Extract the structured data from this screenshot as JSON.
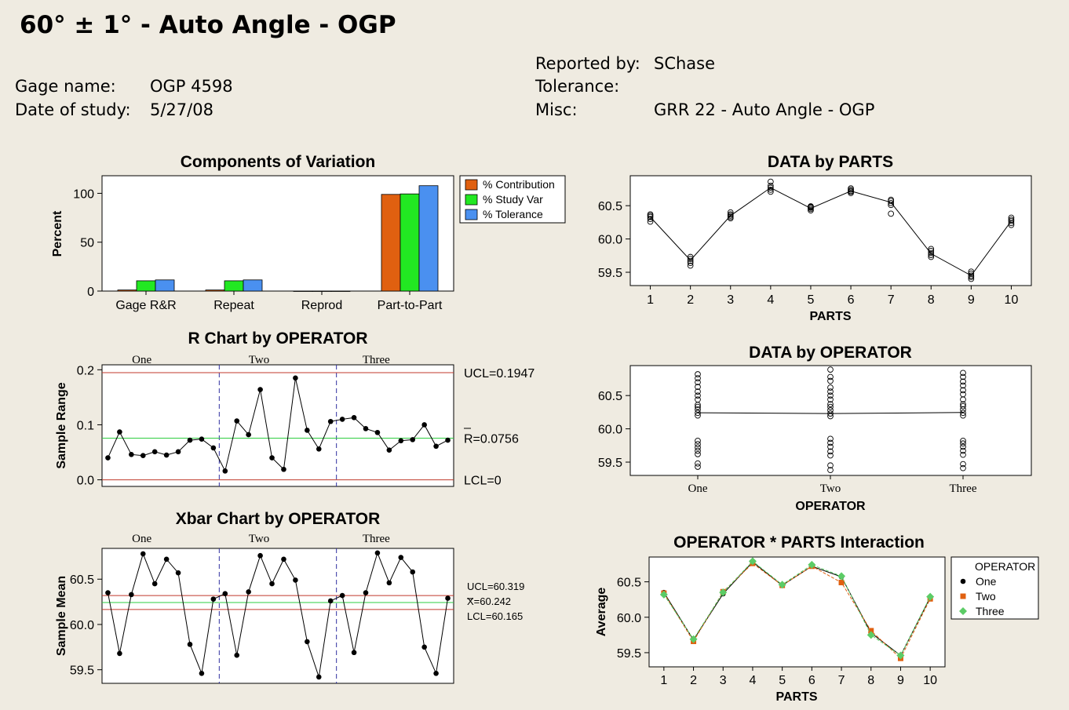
{
  "header": {
    "title": "60° ± 1° - Auto Angle - OGP",
    "gage_name_label": "Gage name:",
    "gage_name": "OGP 4598",
    "date_label": "Date of study:",
    "date": "5/27/08",
    "reported_by_label": "Reported by:",
    "reported_by": "SChase",
    "tolerance_label": "Tolerance:",
    "tolerance": "",
    "misc_label": "Misc:",
    "misc": "GRR 22 - Auto Angle - OGP"
  },
  "chart_data": [
    {
      "id": "components",
      "type": "bar",
      "title": "Components of Variation",
      "ylabel": "Percent",
      "categories": [
        "Gage R&R",
        "Repeat",
        "Reprod",
        "Part-to-Part"
      ],
      "ylim": [
        0,
        118
      ],
      "yticks": [
        0,
        50,
        100
      ],
      "series": [
        {
          "name": "% Contribution",
          "color": "#e06010",
          "values": [
            1.1,
            1.1,
            0,
            98.9
          ]
        },
        {
          "name": "% Study Var",
          "color": "#22e822",
          "values": [
            10.5,
            10.5,
            0,
            99.4
          ]
        },
        {
          "name": "% Tolerance",
          "color": "#4a90f0",
          "values": [
            11.4,
            11.4,
            0,
            107.8
          ]
        }
      ],
      "legend": "top-right"
    },
    {
      "id": "rchart",
      "type": "line",
      "title": "R Chart by OPERATOR",
      "ylabel": "Sample Range",
      "groups": [
        "One",
        "Two",
        "Three"
      ],
      "ylim": [
        -0.012,
        0.209
      ],
      "yticks": [
        "0.0",
        "0.1",
        "0.2"
      ],
      "ucl": 0.1947,
      "center": 0.0756,
      "lcl": 0,
      "ucl_label": "UCL=0.1947",
      "center_label": "R=0.0756",
      "lcl_label": "LCL=0",
      "values": [
        0.04,
        0.087,
        0.046,
        0.044,
        0.051,
        0.045,
        0.051,
        0.072,
        0.074,
        0.058,
        0.016,
        0.107,
        0.082,
        0.164,
        0.04,
        0.019,
        0.185,
        0.09,
        0.056,
        0.106,
        0.11,
        0.113,
        0.093,
        0.086,
        0.054,
        0.071,
        0.073,
        0.1,
        0.061,
        0.072
      ]
    },
    {
      "id": "xbar",
      "type": "line",
      "title": "Xbar Chart by OPERATOR",
      "ylabel": "Sample Mean",
      "groups": [
        "One",
        "Two",
        "Three"
      ],
      "ylim": [
        59.35,
        60.84
      ],
      "yticks": [
        "59.5",
        "60.0",
        "60.5"
      ],
      "ucl": 60.319,
      "center": 60.242,
      "lcl": 60.165,
      "ucl_label": "UCL=60.319",
      "center_label": "X=60.242",
      "lcl_label": "LCL=60.165",
      "values": [
        60.35,
        59.68,
        60.33,
        60.78,
        60.45,
        60.72,
        60.57,
        59.78,
        59.46,
        60.28,
        60.34,
        59.66,
        60.36,
        60.76,
        60.45,
        60.72,
        60.49,
        59.81,
        59.42,
        60.26,
        60.32,
        59.69,
        60.35,
        60.79,
        60.46,
        60.74,
        60.58,
        59.75,
        59.46,
        60.29
      ]
    },
    {
      "id": "byparts",
      "type": "scatter",
      "title": "DATA by PARTS",
      "xlabel": "PARTS",
      "x": [
        "1",
        "2",
        "3",
        "4",
        "5",
        "6",
        "7",
        "8",
        "9",
        "10"
      ],
      "ylim": [
        59.3,
        60.95
      ],
      "yticks": [
        "59.5",
        "60.0",
        "60.5"
      ],
      "means": [
        60.33,
        59.68,
        60.35,
        60.77,
        60.46,
        60.72,
        60.55,
        59.78,
        59.45,
        60.27
      ],
      "points": [
        [
          60.26,
          60.3,
          60.33,
          60.35,
          60.37
        ],
        [
          59.6,
          59.64,
          59.67,
          59.7,
          59.73
        ],
        [
          60.31,
          60.33,
          60.35,
          60.37,
          60.4
        ],
        [
          60.71,
          60.74,
          60.77,
          60.8,
          60.86
        ],
        [
          60.43,
          60.45,
          60.47,
          60.48,
          60.49
        ],
        [
          60.69,
          60.71,
          60.72,
          60.74,
          60.76
        ],
        [
          60.38,
          60.51,
          60.54,
          60.57,
          60.59
        ],
        [
          59.73,
          59.76,
          59.79,
          59.82,
          59.85
        ],
        [
          59.4,
          59.43,
          59.45,
          59.48,
          59.51
        ],
        [
          60.21,
          60.24,
          60.27,
          60.29,
          60.32
        ]
      ]
    },
    {
      "id": "byoperator",
      "type": "scatter",
      "title": "DATA by OPERATOR",
      "xlabel": "OPERATOR",
      "x": [
        "One",
        "Two",
        "Three"
      ],
      "ylim": [
        59.3,
        60.95
      ],
      "yticks": [
        "59.5",
        "60.0",
        "60.5"
      ],
      "means": [
        60.242,
        60.229,
        60.246
      ],
      "points": [
        [
          59.43,
          59.48,
          59.62,
          59.67,
          59.72,
          59.77,
          59.82,
          60.2,
          60.24,
          60.29,
          60.33,
          60.36,
          60.44,
          60.5,
          60.56,
          60.63,
          60.7,
          60.76,
          60.82
        ],
        [
          59.38,
          59.45,
          59.6,
          59.66,
          59.73,
          59.79,
          59.85,
          60.19,
          60.23,
          60.28,
          60.33,
          60.37,
          60.44,
          60.5,
          60.56,
          60.62,
          60.72,
          60.78,
          60.89
        ],
        [
          59.41,
          59.47,
          59.61,
          59.67,
          59.73,
          59.78,
          59.82,
          60.2,
          60.24,
          60.29,
          60.34,
          60.37,
          60.44,
          60.52,
          60.58,
          60.65,
          60.71,
          60.78,
          60.84
        ]
      ]
    },
    {
      "id": "interaction",
      "type": "line",
      "title": "OPERATOR * PARTS Interaction",
      "xlabel": "PARTS",
      "ylabel": "Average",
      "x": [
        "1",
        "2",
        "3",
        "4",
        "5",
        "6",
        "7",
        "8",
        "9",
        "10"
      ],
      "ylim": [
        59.3,
        60.85
      ],
      "yticks": [
        "59.5",
        "60.0",
        "60.5"
      ],
      "legend_title": "OPERATOR",
      "series": [
        {
          "name": "One",
          "color": "#000000",
          "marker": "circle",
          "values": [
            60.35,
            59.68,
            60.33,
            60.78,
            60.45,
            60.72,
            60.57,
            59.78,
            59.46,
            60.28
          ]
        },
        {
          "name": "Two",
          "color": "#e06010",
          "marker": "square",
          "values": [
            60.34,
            59.66,
            60.36,
            60.76,
            60.45,
            60.72,
            60.49,
            59.81,
            59.42,
            60.26
          ]
        },
        {
          "name": "Three",
          "color": "#5ccc66",
          "marker": "diamond",
          "values": [
            60.32,
            59.69,
            60.35,
            60.79,
            60.46,
            60.74,
            60.58,
            59.75,
            59.46,
            60.29
          ]
        }
      ],
      "legend": "right"
    }
  ]
}
